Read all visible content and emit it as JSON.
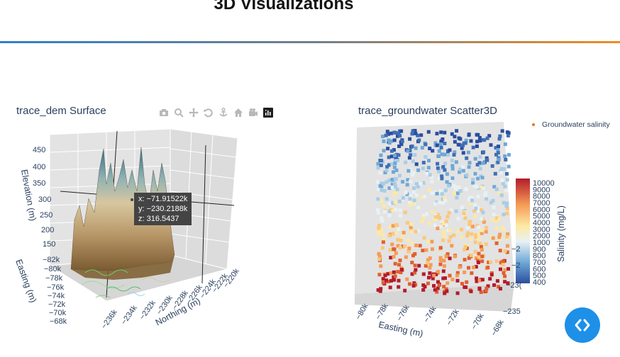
{
  "header": {
    "title": "3D Visualizations"
  },
  "colors": {
    "accent_left": "#2f80c8",
    "accent_right": "#f08c1e",
    "fab": "#1e90e8"
  },
  "left_plot": {
    "title": "trace_dem Surface",
    "modebar": [
      "camera-icon",
      "zoom-icon",
      "pan-icon",
      "orbit-icon",
      "turntable-icon",
      "home-icon",
      "reset-camera-icon",
      "plotly-logo-icon"
    ],
    "axes": {
      "z_title": "Elevation (m)",
      "z_ticks": [
        "450",
        "400",
        "350",
        "300",
        "250",
        "200",
        "150"
      ],
      "y_title": "Easting (m)",
      "y_ticks": [
        "−82k",
        "−80k",
        "−78k",
        "−76k",
        "−74k",
        "−72k",
        "−70k",
        "−68k"
      ],
      "x_title": "Northing (m)",
      "x_ticks": [
        "−236k",
        "−234k",
        "−232k",
        "−230k",
        "−228k",
        "−226k",
        "−224k",
        "−222k",
        "−220k"
      ]
    },
    "hover": {
      "x": "x: −71.91522k",
      "y": "y: −230.2188k",
      "z": "z: 316.5437"
    }
  },
  "right_plot": {
    "title": "trace_groundwater Scatter3D",
    "legend_label": "Groundwater salinity",
    "colorbar": {
      "title": "Salinity (mg/L)",
      "ticks": [
        "10000",
        "9000",
        "8000",
        "7000",
        "6000",
        "5000",
        "4000",
        "3000",
        "2000",
        "1000",
        "900",
        "800",
        "700",
        "600",
        "500",
        "400"
      ]
    },
    "axes": {
      "x_title": "Easting (m)",
      "x_ticks": [
        "−80k",
        "−78k",
        "−76k",
        "−74k",
        "−72k",
        "−70k",
        "−68k"
      ],
      "side_ticks": [
        "−2",
        "−2",
        "−23(",
        "−235"
      ]
    }
  }
}
